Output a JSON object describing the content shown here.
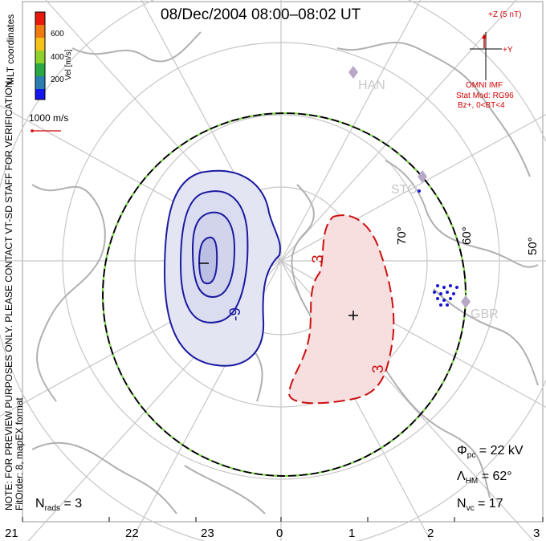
{
  "title": "08/Dec/2004 08:00–08:02 UT",
  "color_scale": {
    "label": "Vel [m/s]",
    "ticks": [
      "600",
      "400",
      "200"
    ],
    "colors": [
      "#e81a0e",
      "#f07a10",
      "#f6c21a",
      "#8fd12a",
      "#2aa844",
      "#2a7fb0",
      "#1515f0"
    ]
  },
  "coordinate_label": "MLT coordinates",
  "velocity_reference": "1000 m/s",
  "side_note": "NOTE: FOR PREVIEW PURPOSES ONLY. PLEASE CONTACT VT-SD STAFF FOR VERIFICATION.",
  "fit_order": "FitOrder: 8, mapEX format",
  "imf": {
    "z_label": "+Z (5 nT)",
    "y_label": "+Y",
    "source": "OMNI IMF",
    "model": "Stat Mod: RG96",
    "condition": "Bz+, 0<BT<4"
  },
  "radars": [
    {
      "code": "HAN"
    },
    {
      "code": "STO"
    },
    {
      "code": "GBR"
    }
  ],
  "latitude_labels": [
    "70°",
    "60°",
    "50°"
  ],
  "contours": [
    {
      "label": "-9",
      "color": "#1a1aa0"
    },
    {
      "label": "3",
      "color": "#cc1010"
    },
    {
      "label": "3",
      "color": "#cc1010"
    }
  ],
  "stats": {
    "phi_pc": "Φpc = 22 kV",
    "phi_sym": "Φ",
    "phi_sub": "pc",
    "phi_val": "= 22 kV",
    "lambda_sym": "Λ",
    "lambda_sub": "HM",
    "lambda_val": "= 62°",
    "nvc_sym": "N",
    "nvc_sub": "vc",
    "nvc_val": "= 17",
    "nrads_sym": "N",
    "nrads_sub": "rads",
    "nrads_val": "= 3"
  },
  "mlt_ticks": [
    "21",
    "22",
    "23",
    "0",
    "1",
    "2",
    "3"
  ]
}
